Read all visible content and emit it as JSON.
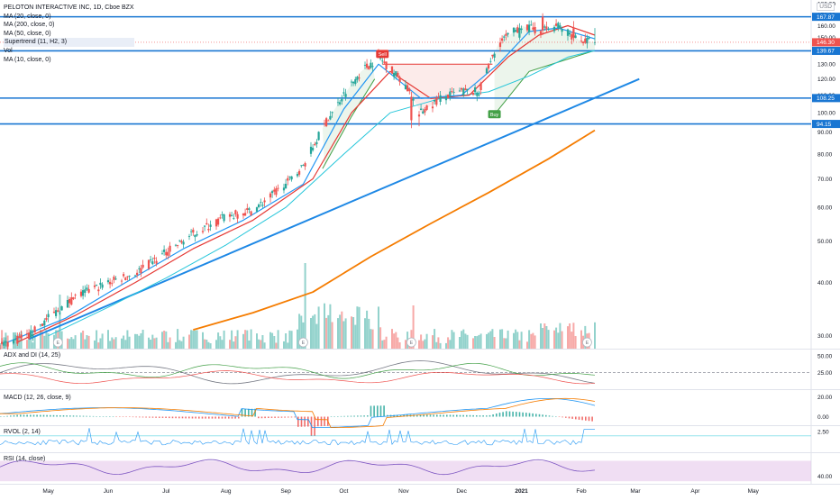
{
  "header": {
    "title": "PELOTON INTERACTIVE INC, 1D, Cboe BZX",
    "indicators": [
      "MA (20, close, 0)",
      "MA (200, close, 0)",
      "MA (50, close, 0)",
      "Supertrend (11, H2, 3)",
      "Vol",
      "MA (10, close, 0)"
    ],
    "currency": "USD"
  },
  "panes": {
    "adx_label": "ADX and DI (14, 25)",
    "macd_label": "MACD (12, 26, close, 9)",
    "rvol_label": "RVOL (2, 14)",
    "rsi_label": "RSI (14, close)"
  },
  "colors": {
    "bull": "#26a69a",
    "bear": "#ef5350",
    "ma10": "#2196f3",
    "ma20": "#e53935",
    "ma50": "#26c6da",
    "ma200": "#f57c00",
    "trendline": "#1e88e5",
    "level": "#1976d2",
    "supertrend_up": "#43a047",
    "supertrend_down": "#e53935",
    "rsi_band": "#e1bee7"
  },
  "chart_data": {
    "type": "candlestick",
    "title": "PELOTON INTERACTIVE INC, 1D, Cboe BZX",
    "price_axis": {
      "ticks": [
        180,
        170,
        160,
        150,
        140,
        130,
        120,
        110,
        100,
        90,
        80,
        70,
        60,
        50,
        40,
        30
      ],
      "ylim": [
        28,
        182
      ],
      "scale": "log"
    },
    "time_axis": {
      "labels": [
        "May",
        "Jun",
        "Jul",
        "Aug",
        "Sep",
        "Oct",
        "Nov",
        "Dec",
        "2021",
        "Feb",
        "Mar",
        "Apr",
        "May"
      ],
      "range": [
        "2020-04-06",
        "2021-05-31"
      ]
    },
    "price_path": [
      [
        "2020-04-06",
        28.5
      ],
      [
        "2020-04-21",
        30
      ],
      [
        "2020-05-01",
        33
      ],
      [
        "2020-05-15",
        37
      ],
      [
        "2020-06-01",
        40
      ],
      [
        "2020-06-15",
        42
      ],
      [
        "2020-07-01",
        47
      ],
      [
        "2020-07-15",
        52
      ],
      [
        "2020-08-01",
        57
      ],
      [
        "2020-08-15",
        59
      ],
      [
        "2020-09-01",
        68
      ],
      [
        "2020-09-10",
        75
      ],
      [
        "2020-09-20",
        92
      ],
      [
        "2020-10-01",
        110
      ],
      [
        "2020-10-10",
        125
      ],
      [
        "2020-10-19",
        135
      ],
      [
        "2020-11-01",
        118
      ],
      [
        "2020-11-10",
        100
      ],
      [
        "2020-11-20",
        108
      ],
      [
        "2020-12-01",
        112
      ],
      [
        "2020-12-10",
        112
      ],
      [
        "2020-12-20",
        145
      ],
      [
        "2021-01-01",
        160
      ],
      [
        "2021-01-10",
        155
      ],
      [
        "2021-01-20",
        160
      ],
      [
        "2021-01-31",
        148
      ],
      [
        "2021-02-08",
        146.3
      ]
    ],
    "candles": [
      {
        "d": "2020-11-05",
        "o": 109,
        "h": 112,
        "l": 92,
        "c": 96
      },
      {
        "d": "2020-11-09",
        "o": 99,
        "h": 101,
        "l": 93,
        "c": 98
      },
      {
        "d": "2020-12-31",
        "o": 150,
        "h": 162,
        "l": 148,
        "c": 158
      },
      {
        "d": "2021-01-12",
        "o": 168,
        "h": 171,
        "l": 152,
        "c": 156
      },
      {
        "d": "2021-01-28",
        "o": 158,
        "h": 164,
        "l": 147,
        "c": 150
      },
      {
        "d": "2021-02-08",
        "o": 146,
        "h": 158,
        "l": 144,
        "c": 146.3
      }
    ],
    "moving_averages": {
      "ma10": [
        [
          "2020-04-10",
          29
        ],
        [
          "2020-05-10",
          33
        ],
        [
          "2020-06-10",
          40
        ],
        [
          "2020-07-10",
          48
        ],
        [
          "2020-08-10",
          56
        ],
        [
          "2020-09-10",
          68
        ],
        [
          "2020-10-01",
          102
        ],
        [
          "2020-10-19",
          130
        ],
        [
          "2020-11-10",
          108
        ],
        [
          "2020-12-01",
          110
        ],
        [
          "2020-12-20",
          130
        ],
        [
          "2021-01-05",
          155
        ],
        [
          "2021-01-20",
          158
        ],
        [
          "2021-02-08",
          149
        ]
      ],
      "ma20": [
        [
          "2020-04-15",
          29
        ],
        [
          "2020-05-15",
          33.5
        ],
        [
          "2020-06-15",
          40
        ],
        [
          "2020-07-15",
          48
        ],
        [
          "2020-08-15",
          56
        ],
        [
          "2020-09-15",
          70
        ],
        [
          "2020-10-05",
          100
        ],
        [
          "2020-10-25",
          125
        ],
        [
          "2020-11-15",
          108
        ],
        [
          "2020-12-05",
          110
        ],
        [
          "2020-12-25",
          135
        ],
        [
          "2021-01-10",
          152
        ],
        [
          "2021-01-25",
          160
        ],
        [
          "2021-02-08",
          152
        ]
      ],
      "ma50": [
        [
          "2020-05-01",
          30
        ],
        [
          "2020-06-01",
          35
        ],
        [
          "2020-07-01",
          41
        ],
        [
          "2020-08-01",
          49
        ],
        [
          "2020-09-01",
          60
        ],
        [
          "2020-10-01",
          80
        ],
        [
          "2020-10-25",
          100
        ],
        [
          "2020-11-20",
          108
        ],
        [
          "2020-12-15",
          112
        ],
        [
          "2021-01-05",
          122
        ],
        [
          "2021-01-25",
          135
        ],
        [
          "2021-02-08",
          140
        ]
      ],
      "ma200": [
        [
          "2020-07-15",
          31
        ],
        [
          "2020-08-15",
          34
        ],
        [
          "2020-09-15",
          38
        ],
        [
          "2020-10-15",
          46
        ],
        [
          "2020-11-15",
          55
        ],
        [
          "2020-12-15",
          65
        ],
        [
          "2021-01-15",
          78
        ],
        [
          "2021-02-08",
          91
        ]
      ]
    },
    "supertrend": [
      [
        "2020-09-20",
        74
      ],
      [
        "2020-10-05",
        98
      ],
      [
        "2020-10-17",
        120
      ],
      [
        "2020-10-21",
        130
      ],
      [
        "2020-12-17",
        130
      ],
      [
        "2020-12-18",
        99
      ],
      [
        "2021-01-05",
        125
      ],
      [
        "2021-02-08",
        140
      ]
    ],
    "trendline": {
      "from": [
        "2020-04-21",
        29.5
      ],
      "to": [
        "2021-03-03",
        120
      ]
    },
    "levels": [
      167.87,
      139.67,
      108.25,
      94.15
    ],
    "level_labels": [
      "167.87",
      "139.67",
      "108.25",
      "94.15"
    ],
    "last_price": 146.3,
    "last_price_label": "146.30",
    "signals": [
      {
        "label": "Sell",
        "date": "2020-10-21",
        "price": 137
      },
      {
        "label": "Buy",
        "date": "2020-12-18",
        "price": 99
      }
    ],
    "earnings_dates": [
      "2020-05-06",
      "2020-09-10",
      "2020-11-05",
      "2021-02-04"
    ],
    "earnings_label": "E",
    "adx": {
      "ticks": [
        50,
        25
      ],
      "threshold": 25
    },
    "macd": {
      "ticks": [
        20,
        0
      ],
      "tick_labels": [
        "20.00",
        "0.00"
      ]
    },
    "rvol": {
      "ticks": [
        2.5
      ],
      "tick_labels": [
        "2.50"
      ]
    },
    "rsi": {
      "ticks": [
        40
      ],
      "tick_labels": [
        "40.00"
      ]
    }
  }
}
